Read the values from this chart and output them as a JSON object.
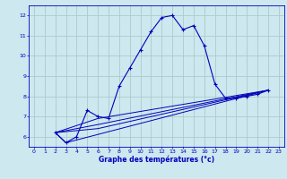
{
  "xlabel": "Graphe des températures (°c)",
  "xlim": [
    -0.5,
    23.5
  ],
  "ylim": [
    5.5,
    12.5
  ],
  "yticks": [
    6,
    7,
    8,
    9,
    10,
    11,
    12
  ],
  "xticks": [
    0,
    1,
    2,
    3,
    4,
    5,
    6,
    7,
    8,
    9,
    10,
    11,
    12,
    13,
    14,
    15,
    16,
    17,
    18,
    19,
    20,
    21,
    22,
    23
  ],
  "background_color": "#cde8ef",
  "grid_color": "#aacccc",
  "line_color": "#0000bb",
  "lines": [
    {
      "x": [
        2,
        3,
        4,
        5,
        6,
        7,
        8,
        9,
        10,
        11,
        12,
        13,
        14,
        15,
        16,
        17,
        18,
        19,
        20,
        21,
        22
      ],
      "y": [
        6.2,
        5.7,
        6.0,
        7.3,
        7.0,
        6.9,
        8.5,
        9.4,
        10.3,
        11.2,
        11.9,
        12.0,
        11.3,
        11.5,
        10.5,
        8.6,
        7.9,
        7.9,
        8.0,
        8.1,
        8.3
      ],
      "marker": true
    },
    {
      "x": [
        2,
        3,
        22
      ],
      "y": [
        6.2,
        5.7,
        8.3
      ],
      "marker": false
    },
    {
      "x": [
        2,
        6,
        22
      ],
      "y": [
        6.2,
        6.4,
        8.3
      ],
      "marker": false
    },
    {
      "x": [
        2,
        6,
        22
      ],
      "y": [
        6.2,
        6.6,
        8.3
      ],
      "marker": false
    },
    {
      "x": [
        2,
        6,
        22
      ],
      "y": [
        6.2,
        6.9,
        8.3
      ],
      "marker": false
    }
  ],
  "figwidth": 3.2,
  "figheight": 2.0,
  "dpi": 100
}
